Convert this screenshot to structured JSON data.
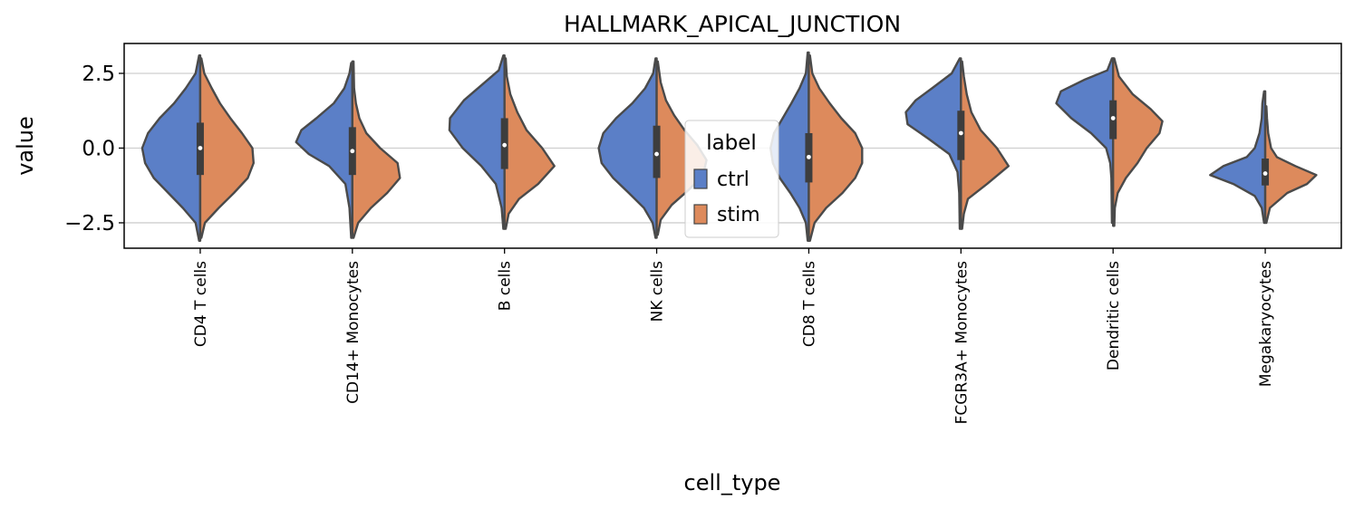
{
  "chart_data": {
    "type": "violin",
    "title": "HALLMARK_APICAL_JUNCTION",
    "xlabel": "cell_type",
    "ylabel": "value",
    "ylim": [
      -3.35,
      3.5
    ],
    "yticks": [
      -2.5,
      0.0,
      2.5
    ],
    "ytick_labels": [
      "−2.5",
      "0.0",
      "2.5"
    ],
    "grid": "horizontal",
    "split": true,
    "categories": [
      "CD4 T cells",
      "CD14+ Monocytes",
      "B cells",
      "NK cells",
      "CD8 T cells",
      "FCGR3A+ Monocytes",
      "Dendritic cells",
      "Megakaryocytes"
    ],
    "legend": {
      "title": "label",
      "placement": "center",
      "entries": [
        {
          "label": "ctrl",
          "color": "#5b7fc7"
        },
        {
          "label": "stim",
          "color": "#dd8a5c"
        }
      ]
    },
    "series": [
      {
        "name": "ctrl",
        "color": "#5b7fc7",
        "violins": [
          {
            "ymin": -3.1,
            "ymax": 3.1,
            "profile": [
              [
                -3.1,
                0.02
              ],
              [
                -2.5,
                0.08
              ],
              [
                -2.0,
                0.3
              ],
              [
                -1.5,
                0.55
              ],
              [
                -1.0,
                0.8
              ],
              [
                -0.5,
                0.95
              ],
              [
                0.0,
                1.0
              ],
              [
                0.5,
                0.9
              ],
              [
                1.0,
                0.7
              ],
              [
                1.5,
                0.45
              ],
              [
                2.0,
                0.25
              ],
              [
                2.5,
                0.08
              ],
              [
                3.1,
                0.02
              ]
            ]
          },
          {
            "ymin": -3.0,
            "ymax": 2.85,
            "profile": [
              [
                -3.0,
                0.02
              ],
              [
                -2.0,
                0.05
              ],
              [
                -1.2,
                0.12
              ],
              [
                -0.6,
                0.4
              ],
              [
                -0.2,
                0.75
              ],
              [
                0.2,
                0.97
              ],
              [
                0.6,
                0.88
              ],
              [
                1.0,
                0.62
              ],
              [
                1.5,
                0.32
              ],
              [
                2.0,
                0.14
              ],
              [
                2.5,
                0.05
              ],
              [
                2.85,
                0.02
              ]
            ]
          },
          {
            "ymin": -2.7,
            "ymax": 3.1,
            "profile": [
              [
                -2.7,
                0.02
              ],
              [
                -2.0,
                0.05
              ],
              [
                -1.2,
                0.15
              ],
              [
                -0.6,
                0.4
              ],
              [
                0.0,
                0.72
              ],
              [
                0.6,
                0.95
              ],
              [
                1.0,
                0.94
              ],
              [
                1.6,
                0.7
              ],
              [
                2.1,
                0.4
              ],
              [
                2.6,
                0.1
              ],
              [
                3.1,
                0.02
              ]
            ]
          },
          {
            "ymin": -3.0,
            "ymax": 3.0,
            "profile": [
              [
                -3.0,
                0.02
              ],
              [
                -2.5,
                0.07
              ],
              [
                -2.0,
                0.22
              ],
              [
                -1.5,
                0.48
              ],
              [
                -1.0,
                0.75
              ],
              [
                -0.5,
                0.95
              ],
              [
                0.0,
                1.0
              ],
              [
                0.5,
                0.92
              ],
              [
                1.0,
                0.7
              ],
              [
                1.5,
                0.42
              ],
              [
                2.0,
                0.2
              ],
              [
                2.5,
                0.06
              ],
              [
                3.0,
                0.02
              ]
            ]
          },
          {
            "ymin": -3.1,
            "ymax": 3.2,
            "profile": [
              [
                -3.1,
                0.02
              ],
              [
                -2.5,
                0.05
              ],
              [
                -2.0,
                0.16
              ],
              [
                -1.5,
                0.32
              ],
              [
                -1.0,
                0.5
              ],
              [
                -0.5,
                0.62
              ],
              [
                0.0,
                0.66
              ],
              [
                0.5,
                0.6
              ],
              [
                1.0,
                0.45
              ],
              [
                1.5,
                0.3
              ],
              [
                2.0,
                0.16
              ],
              [
                2.5,
                0.05
              ],
              [
                3.2,
                0.02
              ]
            ]
          },
          {
            "ymin": -2.7,
            "ymax": 3.0,
            "profile": [
              [
                -2.7,
                0.02
              ],
              [
                -1.5,
                0.03
              ],
              [
                -0.8,
                0.06
              ],
              [
                -0.2,
                0.2
              ],
              [
                0.3,
                0.55
              ],
              [
                0.8,
                0.92
              ],
              [
                1.2,
                0.95
              ],
              [
                1.6,
                0.78
              ],
              [
                2.0,
                0.5
              ],
              [
                2.5,
                0.16
              ],
              [
                3.0,
                0.02
              ]
            ]
          },
          {
            "ymin": -2.5,
            "ymax": 3.0,
            "profile": [
              [
                -2.5,
                0.02
              ],
              [
                -1.0,
                0.03
              ],
              [
                -0.5,
                0.05
              ],
              [
                0.0,
                0.12
              ],
              [
                0.5,
                0.38
              ],
              [
                1.0,
                0.72
              ],
              [
                1.5,
                0.98
              ],
              [
                1.9,
                0.9
              ],
              [
                2.3,
                0.48
              ],
              [
                2.6,
                0.1
              ],
              [
                3.0,
                0.02
              ]
            ]
          },
          {
            "ymin": -2.5,
            "ymax": 1.9,
            "profile": [
              [
                -2.5,
                0.02
              ],
              [
                -2.0,
                0.06
              ],
              [
                -1.6,
                0.18
              ],
              [
                -1.2,
                0.55
              ],
              [
                -0.9,
                0.95
              ],
              [
                -0.6,
                0.72
              ],
              [
                -0.3,
                0.32
              ],
              [
                0.0,
                0.18
              ],
              [
                0.5,
                0.1
              ],
              [
                1.0,
                0.06
              ],
              [
                1.5,
                0.05
              ],
              [
                1.9,
                0.02
              ]
            ]
          }
        ]
      },
      {
        "name": "stim",
        "color": "#dd8a5c",
        "violins": [
          {
            "ymin": -3.0,
            "ymax": 3.0,
            "profile": [
              [
                -3.0,
                0.02
              ],
              [
                -2.5,
                0.08
              ],
              [
                -2.0,
                0.32
              ],
              [
                -1.5,
                0.58
              ],
              [
                -1.0,
                0.82
              ],
              [
                -0.5,
                0.92
              ],
              [
                0.0,
                0.9
              ],
              [
                0.5,
                0.72
              ],
              [
                1.0,
                0.52
              ],
              [
                1.5,
                0.34
              ],
              [
                2.0,
                0.2
              ],
              [
                2.5,
                0.07
              ],
              [
                3.0,
                0.02
              ]
            ]
          },
          {
            "ymin": -3.0,
            "ymax": 2.9,
            "profile": [
              [
                -3.0,
                0.02
              ],
              [
                -2.5,
                0.1
              ],
              [
                -2.0,
                0.32
              ],
              [
                -1.5,
                0.6
              ],
              [
                -1.0,
                0.82
              ],
              [
                -0.5,
                0.78
              ],
              [
                0.0,
                0.48
              ],
              [
                0.5,
                0.24
              ],
              [
                1.0,
                0.12
              ],
              [
                1.5,
                0.06
              ],
              [
                2.0,
                0.03
              ],
              [
                2.9,
                0.02
              ]
            ]
          },
          {
            "ymin": -2.7,
            "ymax": 3.0,
            "profile": [
              [
                -2.7,
                0.02
              ],
              [
                -2.2,
                0.07
              ],
              [
                -1.7,
                0.25
              ],
              [
                -1.2,
                0.58
              ],
              [
                -0.6,
                0.86
              ],
              [
                0.0,
                0.65
              ],
              [
                0.6,
                0.38
              ],
              [
                1.2,
                0.22
              ],
              [
                1.8,
                0.1
              ],
              [
                2.4,
                0.04
              ],
              [
                3.0,
                0.02
              ]
            ]
          },
          {
            "ymin": -2.9,
            "ymax": 2.9,
            "profile": [
              [
                -2.9,
                0.02
              ],
              [
                -2.4,
                0.07
              ],
              [
                -1.9,
                0.26
              ],
              [
                -1.4,
                0.55
              ],
              [
                -0.9,
                0.8
              ],
              [
                -0.4,
                0.86
              ],
              [
                0.1,
                0.7
              ],
              [
                0.6,
                0.48
              ],
              [
                1.1,
                0.3
              ],
              [
                1.6,
                0.16
              ],
              [
                2.2,
                0.07
              ],
              [
                2.9,
                0.02
              ]
            ]
          },
          {
            "ymin": -3.1,
            "ymax": 3.1,
            "profile": [
              [
                -3.1,
                0.02
              ],
              [
                -2.5,
                0.1
              ],
              [
                -2.0,
                0.3
              ],
              [
                -1.5,
                0.58
              ],
              [
                -1.0,
                0.8
              ],
              [
                -0.5,
                0.92
              ],
              [
                0.0,
                0.92
              ],
              [
                0.5,
                0.8
              ],
              [
                1.0,
                0.56
              ],
              [
                1.5,
                0.36
              ],
              [
                2.0,
                0.18
              ],
              [
                2.5,
                0.06
              ],
              [
                3.1,
                0.02
              ]
            ]
          },
          {
            "ymin": -2.7,
            "ymax": 2.9,
            "profile": [
              [
                -2.7,
                0.02
              ],
              [
                -2.2,
                0.05
              ],
              [
                -1.7,
                0.12
              ],
              [
                -1.2,
                0.45
              ],
              [
                -0.6,
                0.82
              ],
              [
                0.0,
                0.62
              ],
              [
                0.6,
                0.34
              ],
              [
                1.2,
                0.18
              ],
              [
                1.8,
                0.1
              ],
              [
                2.4,
                0.05
              ],
              [
                2.9,
                0.02
              ]
            ]
          },
          {
            "ymin": -2.6,
            "ymax": 3.0,
            "profile": [
              [
                -2.6,
                0.02
              ],
              [
                -2.0,
                0.03
              ],
              [
                -1.5,
                0.08
              ],
              [
                -1.0,
                0.22
              ],
              [
                -0.5,
                0.42
              ],
              [
                0.0,
                0.58
              ],
              [
                0.5,
                0.8
              ],
              [
                0.9,
                0.85
              ],
              [
                1.3,
                0.65
              ],
              [
                1.8,
                0.34
              ],
              [
                2.4,
                0.1
              ],
              [
                3.0,
                0.02
              ]
            ]
          },
          {
            "ymin": -2.5,
            "ymax": 1.4,
            "profile": [
              [
                -2.5,
                0.02
              ],
              [
                -2.0,
                0.08
              ],
              [
                -1.5,
                0.38
              ],
              [
                -1.2,
                0.72
              ],
              [
                -0.9,
                0.88
              ],
              [
                -0.6,
                0.52
              ],
              [
                -0.3,
                0.2
              ],
              [
                0.0,
                0.1
              ],
              [
                0.5,
                0.05
              ],
              [
                1.0,
                0.03
              ],
              [
                1.4,
                0.02
              ]
            ]
          }
        ]
      }
    ],
    "boxes": [
      {
        "q1": -0.9,
        "median": 0.0,
        "q3": 0.85
      },
      {
        "q1": -0.9,
        "median": -0.1,
        "q3": 0.7
      },
      {
        "q1": -0.7,
        "median": 0.1,
        "q3": 1.0
      },
      {
        "q1": -1.0,
        "median": -0.2,
        "q3": 0.75
      },
      {
        "q1": -1.15,
        "median": -0.3,
        "q3": 0.5
      },
      {
        "q1": -0.4,
        "median": 0.5,
        "q3": 1.25
      },
      {
        "q1": 0.3,
        "median": 1.0,
        "q3": 1.6
      },
      {
        "q1": -1.25,
        "median": -0.85,
        "q3": -0.35
      }
    ]
  }
}
